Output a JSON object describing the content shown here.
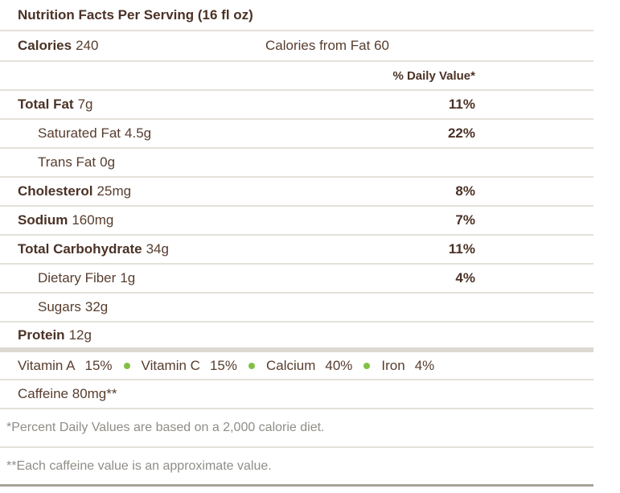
{
  "title": "Nutrition Facts Per Serving (16 fl oz)",
  "calories": {
    "label": "Calories",
    "value": "240",
    "from_fat": "Calories from Fat 60"
  },
  "daily_value_header": "% Daily Value*",
  "nutrients": [
    {
      "label": "Total Fat",
      "amount": "7g",
      "dv": "11%",
      "bold": true,
      "indent": false
    },
    {
      "label": "Saturated Fat",
      "amount": "4.5g",
      "dv": "22%",
      "bold": false,
      "indent": true
    },
    {
      "label": "Trans Fat",
      "amount": "0g",
      "dv": "",
      "bold": false,
      "indent": true
    },
    {
      "label": "Cholesterol",
      "amount": "25mg",
      "dv": "8%",
      "bold": true,
      "indent": false
    },
    {
      "label": "Sodium",
      "amount": "160mg",
      "dv": "7%",
      "bold": true,
      "indent": false
    },
    {
      "label": "Total Carbohydrate",
      "amount": "34g",
      "dv": "11%",
      "bold": true,
      "indent": false
    },
    {
      "label": "Dietary Fiber",
      "amount": "1g",
      "dv": "4%",
      "bold": false,
      "indent": true
    },
    {
      "label": "Sugars",
      "amount": "32g",
      "dv": "",
      "bold": false,
      "indent": true
    },
    {
      "label": "Protein",
      "amount": "12g",
      "dv": "",
      "bold": true,
      "indent": false
    }
  ],
  "vitamins": [
    {
      "name": "Vitamin A",
      "value": "15%"
    },
    {
      "name": "Vitamin C",
      "value": "15%"
    },
    {
      "name": "Calcium",
      "value": "40%"
    },
    {
      "name": "Iron",
      "value": "4%"
    }
  ],
  "caffeine_label": "Caffeine 80mg**",
  "footnotes": [
    "*Percent Daily Values are based on a 2,000 calorie diet.",
    "**Each caffeine value is an approximate value."
  ],
  "colors": {
    "text_brown": "#4b3226",
    "divider": "#e4e1d8",
    "thick_bar": "#ddd9d0",
    "bottom_border": "#a8a29a",
    "footnote_grey": "#8f8d87",
    "bullet_green": "#82c045"
  }
}
